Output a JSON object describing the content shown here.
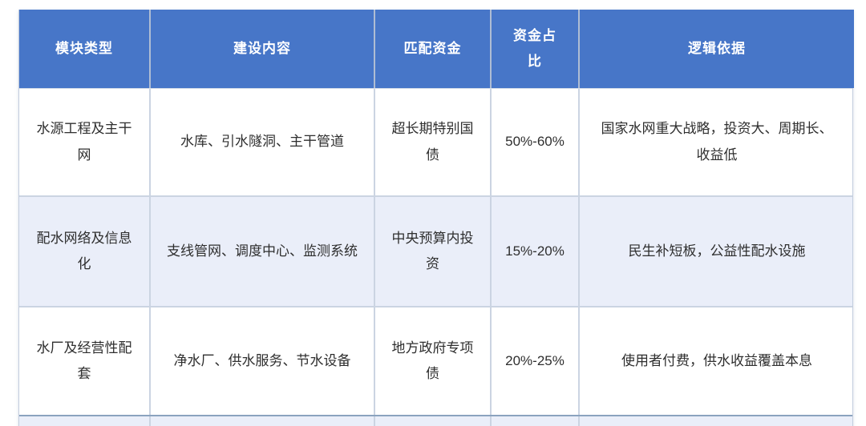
{
  "table": {
    "header": [
      "模块类型",
      "建设内容",
      "匹配资金",
      "资金占比",
      "逻辑依据"
    ],
    "rows": [
      {
        "module": "水源工程及主干网",
        "content": "水库、引水隧洞、主干管道",
        "funding": "超长期特别国债",
        "ratio": "50%-60%",
        "logic": "国家水网重大战略，投资大、周期长、收益低"
      },
      {
        "module": "配水网络及信息化",
        "content": "支线管网、调度中心、监测系统",
        "funding": "中央预算内投资",
        "ratio": "15%-20%",
        "logic": "民生补短板，公益性配水设施"
      },
      {
        "module": "水厂及经营性配套",
        "content": "净水厂、供水服务、节水设备",
        "funding": "地方政府专项债",
        "ratio": "20%-25%",
        "logic": "使用者付费，供水收益覆盖本息"
      }
    ],
    "colors": {
      "header_bg": "#4776C8",
      "header_text": "#FFFFFF",
      "row_bg": "#FFFFFF",
      "row_alt_bg": "#EAEEF9",
      "body_text": "#2E2E2E",
      "border_inner": "#CBD4E2",
      "border_header": "#AFBDD3",
      "border_outer": "#8BA3BF"
    }
  }
}
